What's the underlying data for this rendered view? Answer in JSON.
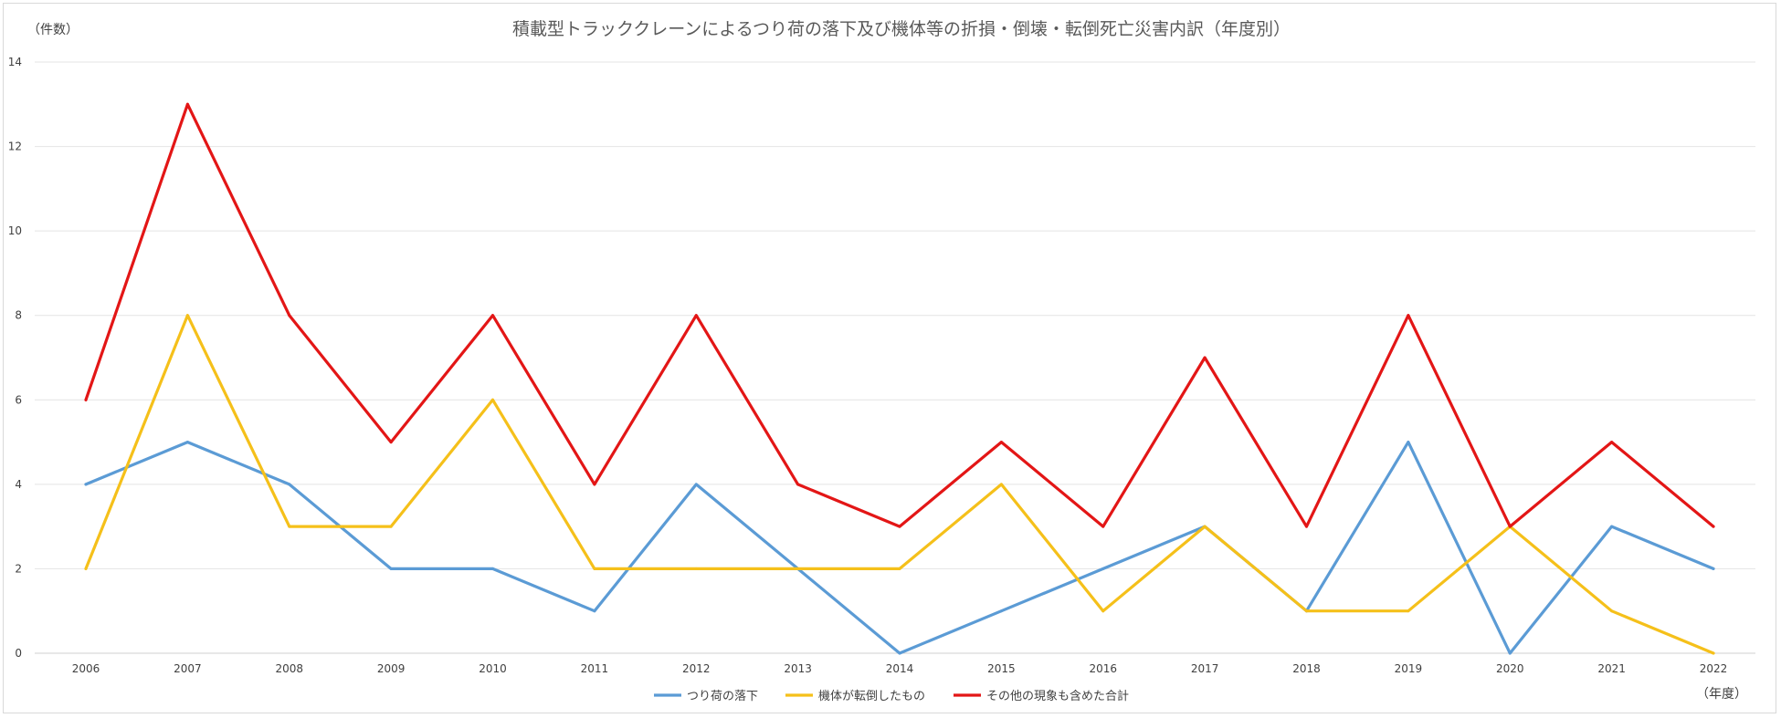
{
  "chart_data": {
    "type": "line",
    "title": "積載型トラッククレーンによるつり荷の落下及び機体等の折損・倒壊・転倒死亡災害内訳（年度別）",
    "ylabel": "（件数）",
    "xlabel": "（年度）",
    "categories": [
      "2006",
      "2007",
      "2008",
      "2009",
      "2010",
      "2011",
      "2012",
      "2013",
      "2014",
      "2015",
      "2016",
      "2017",
      "2018",
      "2019",
      "2020",
      "2021",
      "2022"
    ],
    "ylim": [
      0,
      14
    ],
    "yticks": [
      0,
      2,
      4,
      6,
      8,
      10,
      12,
      14
    ],
    "grid": true,
    "legend_position": "bottom",
    "series": [
      {
        "name": "つり荷の落下",
        "color": "#5b9bd5",
        "values": [
          4,
          5,
          4,
          2,
          2,
          1,
          4,
          2,
          0,
          1,
          2,
          3,
          1,
          5,
          0,
          3,
          2
        ]
      },
      {
        "name": "機体が転倒したもの",
        "color": "#f5c01a",
        "values": [
          2,
          8,
          3,
          3,
          6,
          2,
          2,
          2,
          2,
          4,
          1,
          3,
          1,
          1,
          3,
          1,
          0
        ]
      },
      {
        "name": "その他の現象も含めた合計",
        "color": "#e31616",
        "values": [
          6,
          13,
          8,
          5,
          8,
          4,
          8,
          4,
          3,
          5,
          3,
          7,
          3,
          8,
          3,
          5,
          3
        ]
      }
    ]
  }
}
